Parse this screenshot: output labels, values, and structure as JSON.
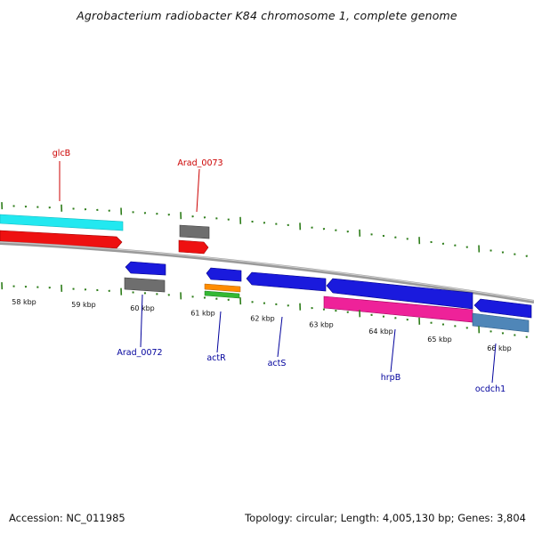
{
  "title": "Agrobacterium radiobacter K84 chromosome 1, complete genome",
  "footer": {
    "accession": "Accession: NC_011985",
    "summary": "Topology: circular; Length: 4,005,130 bp; Genes: 3,804"
  },
  "colors": {
    "backbone": "#8a8a8a",
    "tick": "#2e7d1a",
    "label_red": "#cc0000",
    "label_blue": "#00009c",
    "cyan": "#22e8f0",
    "red": "#ee1111",
    "gray": "#6e6e6e",
    "blue": "#1a1add",
    "orange": "#ff8c00",
    "green": "#33b833",
    "pink": "#ee2299",
    "steel": "#4f86b8"
  },
  "scale": {
    "unit": "kbp",
    "ticks": [
      {
        "label": "58 kbp"
      },
      {
        "label": "59 kbp"
      },
      {
        "label": "60 kbp"
      },
      {
        "label": "61 kbp"
      },
      {
        "label": "62 kbp"
      },
      {
        "label": "63 kbp"
      },
      {
        "label": "64 kbp"
      },
      {
        "label": "65 kbp"
      },
      {
        "label": "66 kbp"
      }
    ]
  },
  "genes_labeled": [
    {
      "name": "glcB",
      "color": "red"
    },
    {
      "name": "Arad_0073",
      "color": "red"
    },
    {
      "name": "Arad_0072",
      "color": "blue"
    },
    {
      "name": "actR",
      "color": "blue"
    },
    {
      "name": "actS",
      "color": "blue"
    },
    {
      "name": "hrpB",
      "color": "blue"
    },
    {
      "name": "ocdch1",
      "color": "blue"
    }
  ]
}
